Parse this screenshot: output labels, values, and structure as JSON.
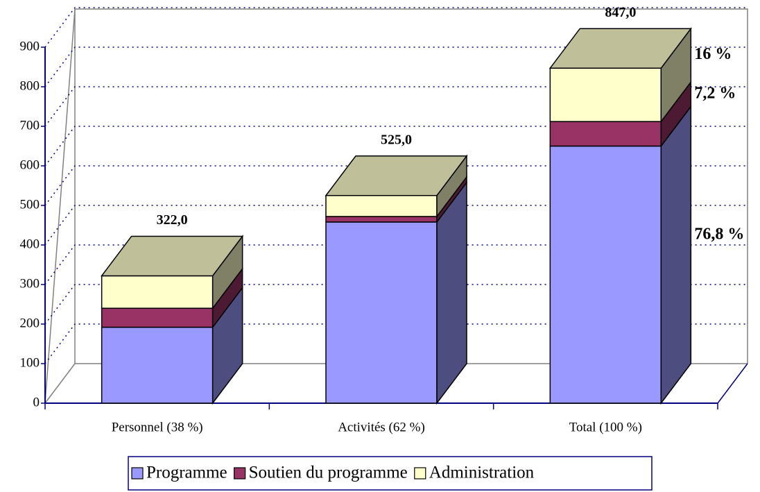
{
  "chart_data": {
    "type": "bar3d_stacked",
    "categories": [
      "Personnel (38 %)",
      "Activités (62 %)",
      "Total (100 %)"
    ],
    "series": [
      {
        "name": "Programme",
        "color": "#9999ff",
        "values": [
          192,
          458,
          650
        ]
      },
      {
        "name": "Soutien du programme",
        "color": "#993366",
        "values": [
          48,
          14,
          62
        ]
      },
      {
        "name": "Administration",
        "color": "#ffffcc",
        "values": [
          82,
          53,
          135
        ]
      }
    ],
    "totals": [
      322,
      525,
      847
    ],
    "total_labels": [
      "322,0",
      "525,0",
      "847,0"
    ],
    "annotations": [
      "76,8 %",
      "7,2 %",
      "16 %"
    ],
    "ylim": [
      0,
      900
    ],
    "yticks": [
      0,
      100,
      200,
      300,
      400,
      500,
      600,
      700,
      800,
      900
    ],
    "grid": true,
    "legend": "bottom"
  }
}
